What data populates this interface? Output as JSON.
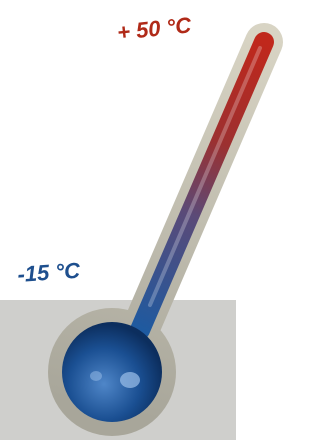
{
  "labels": {
    "max": "+ 50 °C",
    "min": "-15 °C"
  }
}
